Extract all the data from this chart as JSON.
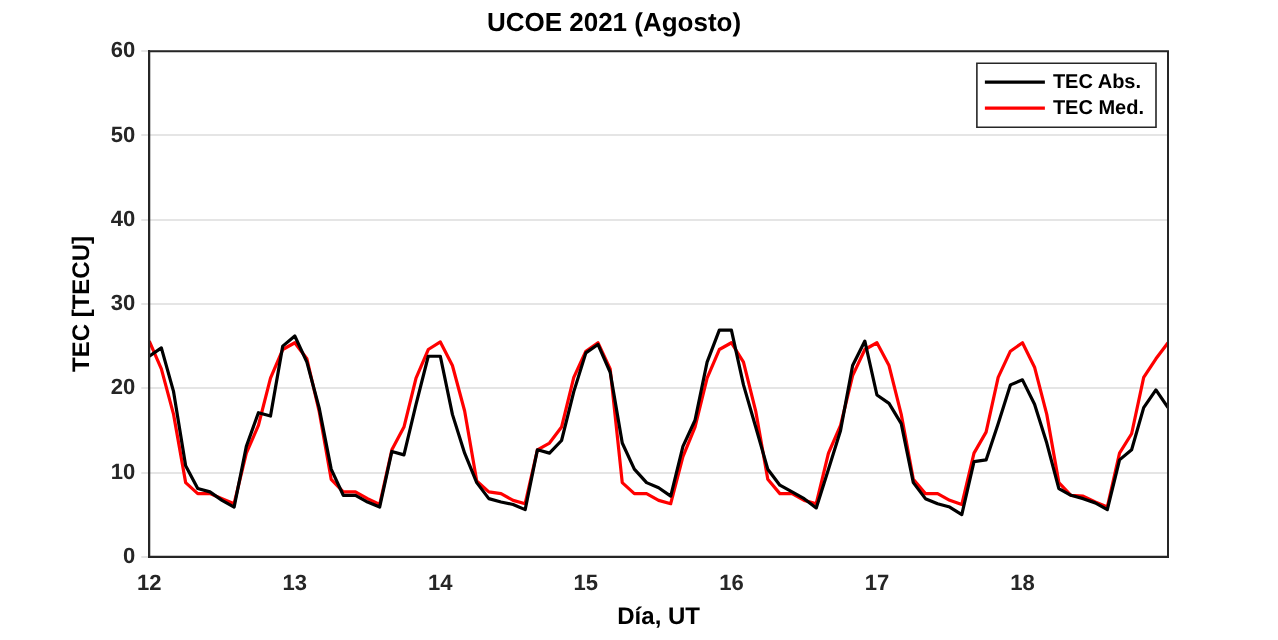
{
  "chart_data": {
    "type": "line",
    "title": "UCOE 2021 (Agosto)",
    "xlabel": "Día, UT",
    "ylabel": "TEC [TECU]",
    "x": [
      12,
      12.083,
      12.167,
      12.25,
      12.333,
      12.417,
      12.5,
      12.583,
      12.667,
      12.75,
      12.833,
      12.917,
      13,
      13.083,
      13.167,
      13.25,
      13.333,
      13.417,
      13.5,
      13.583,
      13.667,
      13.75,
      13.833,
      13.917,
      14,
      14.083,
      14.167,
      14.25,
      14.333,
      14.417,
      14.5,
      14.583,
      14.667,
      14.75,
      14.833,
      14.917,
      15,
      15.083,
      15.167,
      15.25,
      15.333,
      15.417,
      15.5,
      15.583,
      15.667,
      15.75,
      15.833,
      15.917,
      16,
      16.083,
      16.167,
      16.25,
      16.333,
      16.417,
      16.5,
      16.583,
      16.667,
      16.75,
      16.833,
      16.917,
      17,
      17.083,
      17.167,
      17.25,
      17.333,
      17.417,
      17.5,
      17.583,
      17.667,
      17.75,
      17.833,
      17.917,
      18,
      18.083,
      18.167,
      18.25,
      18.333,
      18.417,
      18.5,
      18.583,
      18.667,
      18.75,
      18.833,
      18.917,
      19
    ],
    "series": [
      {
        "name": "TEC Abs.",
        "color": "#000000",
        "values": [
          23.8,
          24.8,
          19.6,
          10.8,
          8.1,
          7.7,
          6.7,
          5.9,
          13.1,
          17.1,
          16.7,
          25.0,
          26.2,
          23.1,
          17.7,
          10.4,
          7.3,
          7.3,
          6.5,
          5.9,
          12.5,
          12.1,
          18.1,
          23.8,
          23.8,
          16.9,
          12.3,
          8.8,
          6.9,
          6.5,
          6.2,
          5.6,
          12.7,
          12.3,
          13.8,
          19.6,
          24.2,
          25.2,
          21.9,
          13.5,
          10.4,
          8.8,
          8.2,
          7.2,
          13.1,
          16.2,
          23.1,
          26.9,
          26.9,
          20.4,
          15.4,
          10.4,
          8.5,
          7.7,
          6.9,
          5.8,
          10.4,
          15.0,
          22.7,
          25.6,
          19.2,
          18.2,
          15.8,
          8.8,
          6.9,
          6.3,
          5.9,
          5.0,
          11.3,
          11.5,
          15.8,
          20.4,
          21.0,
          18.1,
          13.5,
          8.1,
          7.3,
          6.9,
          6.4,
          5.6,
          11.5,
          12.7,
          17.7,
          19.8,
          17.7
        ]
      },
      {
        "name": "TEC Med.",
        "color": "#ff0000",
        "values": [
          25.6,
          22.3,
          16.9,
          8.8,
          7.5,
          7.5,
          6.9,
          6.3,
          12.3,
          15.6,
          21.2,
          24.6,
          25.4,
          23.5,
          17.3,
          9.2,
          7.7,
          7.7,
          6.9,
          6.2,
          12.7,
          15.4,
          21.2,
          24.6,
          25.5,
          22.7,
          17.3,
          9.0,
          7.7,
          7.5,
          6.7,
          6.3,
          12.7,
          13.5,
          15.4,
          21.3,
          24.4,
          25.4,
          22.3,
          8.8,
          7.5,
          7.5,
          6.7,
          6.3,
          11.9,
          15.4,
          21.2,
          24.6,
          25.4,
          23.1,
          17.3,
          9.2,
          7.5,
          7.5,
          6.7,
          6.3,
          12.3,
          15.6,
          21.5,
          24.6,
          25.4,
          22.7,
          16.9,
          9.2,
          7.5,
          7.5,
          6.7,
          6.2,
          12.3,
          14.8,
          21.3,
          24.4,
          25.4,
          22.5,
          16.9,
          8.8,
          7.3,
          7.2,
          6.5,
          5.9,
          12.3,
          14.6,
          21.3,
          23.5,
          25.4
        ]
      }
    ],
    "xlim": [
      12,
      19
    ],
    "xticks": [
      12,
      13,
      14,
      15,
      16,
      17,
      18
    ],
    "ylim": [
      0,
      60
    ],
    "yticks": [
      0,
      10,
      20,
      30,
      40,
      50,
      60
    ],
    "grid": "y",
    "legend": "top right",
    "marker": "none",
    "line_style": "solid"
  }
}
